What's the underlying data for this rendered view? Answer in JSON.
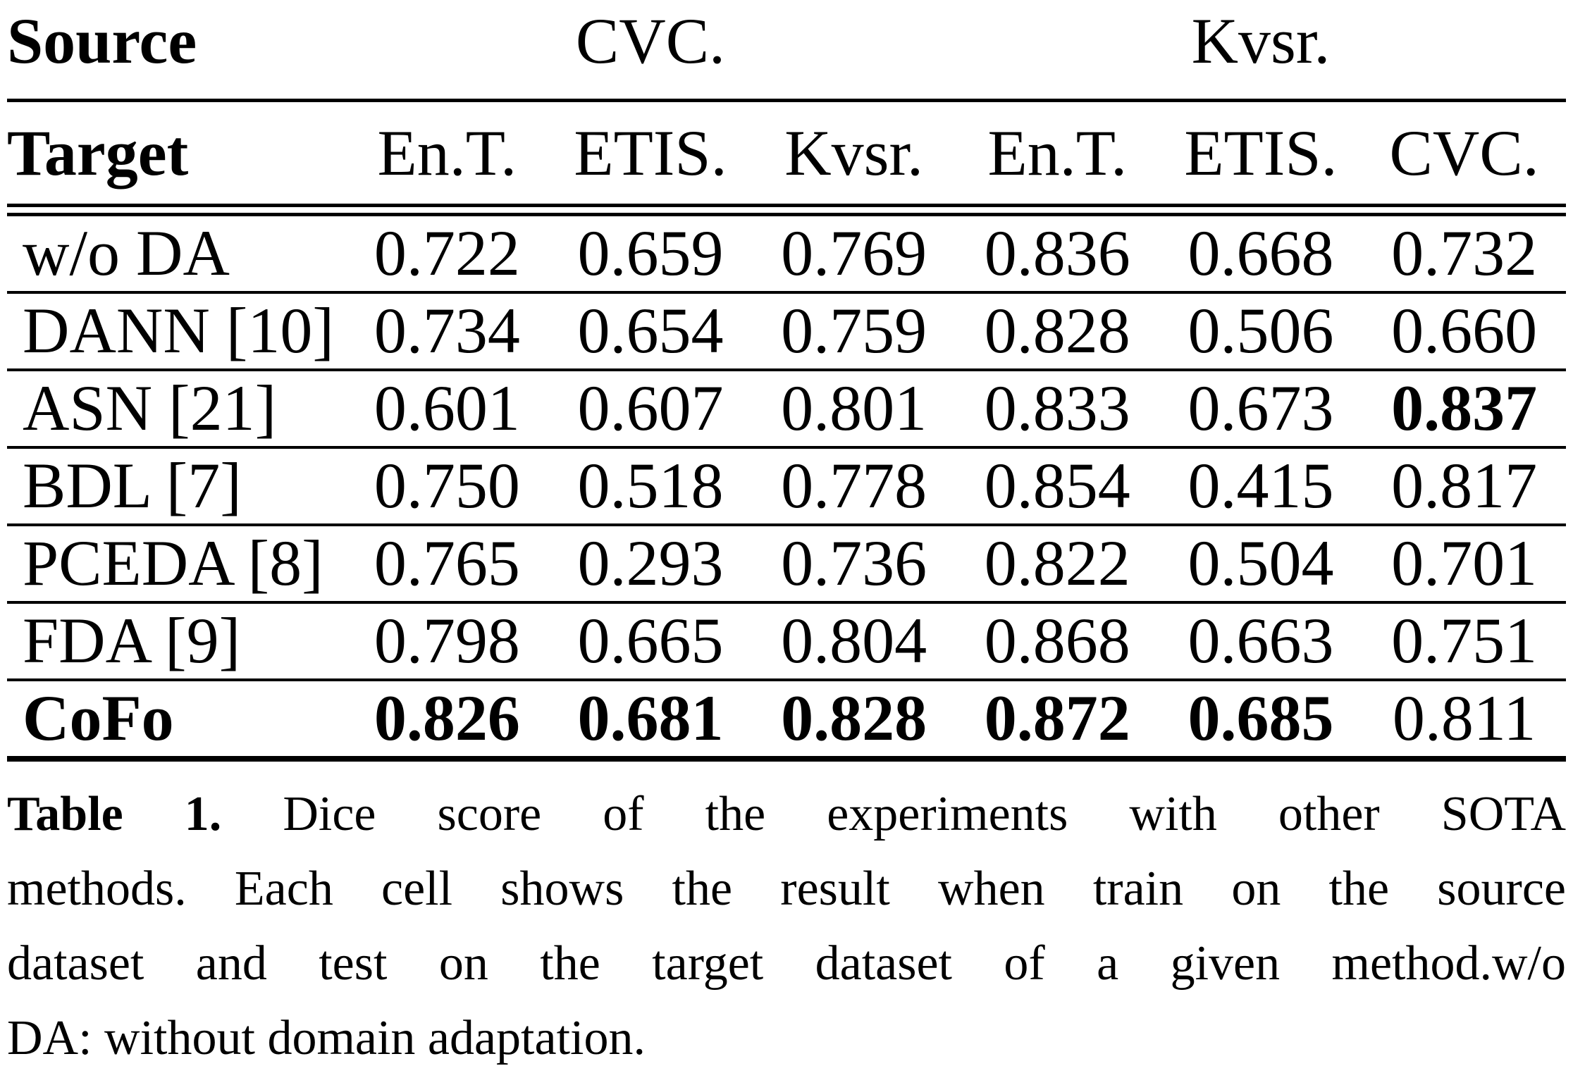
{
  "page": {
    "background": "#ffffff",
    "text_color": "#000000"
  },
  "table": {
    "header_row1": {
      "col1": "Source",
      "group1": "CVC.",
      "group2": "Kvsr."
    },
    "header_row2": {
      "col1": "Target",
      "cols": [
        "En.T.",
        "ETIS.",
        "Kvsr.",
        "En.T.",
        "ETIS.",
        "CVC."
      ]
    },
    "rows": [
      {
        "method": "w/o DA",
        "method_bold": false,
        "values": [
          {
            "v": "0.722",
            "b": false
          },
          {
            "v": "0.659",
            "b": false
          },
          {
            "v": "0.769",
            "b": false
          },
          {
            "v": "0.836",
            "b": false
          },
          {
            "v": "0.668",
            "b": false
          },
          {
            "v": "0.732",
            "b": false
          }
        ]
      },
      {
        "method": "DANN [10]",
        "method_bold": false,
        "values": [
          {
            "v": "0.734",
            "b": false
          },
          {
            "v": "0.654",
            "b": false
          },
          {
            "v": "0.759",
            "b": false
          },
          {
            "v": "0.828",
            "b": false
          },
          {
            "v": "0.506",
            "b": false
          },
          {
            "v": "0.660",
            "b": false
          }
        ]
      },
      {
        "method": "ASN [21]",
        "method_bold": false,
        "values": [
          {
            "v": "0.601",
            "b": false
          },
          {
            "v": "0.607",
            "b": false
          },
          {
            "v": "0.801",
            "b": false
          },
          {
            "v": "0.833",
            "b": false
          },
          {
            "v": "0.673",
            "b": false
          },
          {
            "v": "0.837",
            "b": true
          }
        ]
      },
      {
        "method": "BDL [7]",
        "method_bold": false,
        "values": [
          {
            "v": "0.750",
            "b": false
          },
          {
            "v": "0.518",
            "b": false
          },
          {
            "v": "0.778",
            "b": false
          },
          {
            "v": "0.854",
            "b": false
          },
          {
            "v": "0.415",
            "b": false
          },
          {
            "v": "0.817",
            "b": false
          }
        ]
      },
      {
        "method": "PCEDA [8]",
        "method_bold": false,
        "values": [
          {
            "v": "0.765",
            "b": false
          },
          {
            "v": "0.293",
            "b": false
          },
          {
            "v": "0.736",
            "b": false
          },
          {
            "v": "0.822",
            "b": false
          },
          {
            "v": "0.504",
            "b": false
          },
          {
            "v": "0.701",
            "b": false
          }
        ]
      },
      {
        "method": "FDA [9]",
        "method_bold": false,
        "values": [
          {
            "v": "0.798",
            "b": false
          },
          {
            "v": "0.665",
            "b": false
          },
          {
            "v": "0.804",
            "b": false
          },
          {
            "v": "0.868",
            "b": false
          },
          {
            "v": "0.663",
            "b": false
          },
          {
            "v": "0.751",
            "b": false
          }
        ]
      },
      {
        "method": "CoFo",
        "method_bold": true,
        "values": [
          {
            "v": "0.826",
            "b": true
          },
          {
            "v": "0.681",
            "b": true
          },
          {
            "v": "0.828",
            "b": true
          },
          {
            "v": "0.872",
            "b": true
          },
          {
            "v": "0.685",
            "b": true
          },
          {
            "v": "0.811",
            "b": false
          }
        ]
      }
    ]
  },
  "caption": {
    "line1_label": "Table 1.",
    "line1_rest": " Dice score of the experiments with other SOTA",
    "line2": "methods. Each cell shows the result when train on the source",
    "line3": "dataset and test on the target dataset of a given method.w/o",
    "line4": "DA: without domain adaptation."
  }
}
